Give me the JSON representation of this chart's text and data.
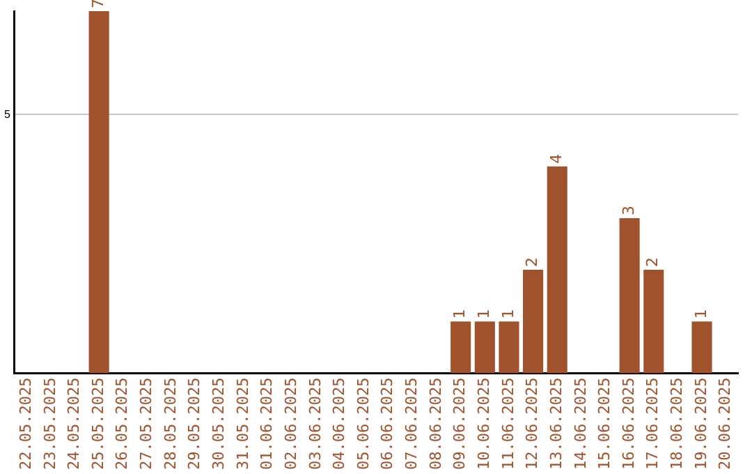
{
  "chart_data": {
    "type": "bar",
    "categories": [
      "22.05.2025",
      "23.05.2025",
      "24.05.2025",
      "25.05.2025",
      "26.05.2025",
      "27.05.2025",
      "28.05.2025",
      "29.05.2025",
      "30.05.2025",
      "31.05.2025",
      "01.06.2025",
      "02.06.2025",
      "03.06.2025",
      "04.06.2025",
      "05.06.2025",
      "06.06.2025",
      "07.06.2025",
      "08.06.2025",
      "09.06.2025",
      "10.06.2025",
      "11.06.2025",
      "12.06.2025",
      "13.06.2025",
      "14.06.2025",
      "15.06.2025",
      "16.06.2025",
      "17.06.2025",
      "18.06.2025",
      "19.06.2025",
      "20.06.2025"
    ],
    "values": [
      0,
      0,
      0,
      7,
      0,
      0,
      0,
      0,
      0,
      0,
      0,
      0,
      0,
      0,
      0,
      0,
      0,
      0,
      1,
      1,
      1,
      2,
      4,
      0,
      0,
      3,
      2,
      0,
      1,
      0
    ],
    "value_labels": [
      null,
      null,
      null,
      "7",
      null,
      null,
      null,
      null,
      null,
      null,
      null,
      null,
      null,
      null,
      null,
      null,
      null,
      null,
      "1",
      "1",
      "1",
      "2",
      "4",
      null,
      null,
      "3",
      "2",
      null,
      "1",
      null
    ],
    "color": "#a0522d",
    "ylim": [
      0,
      7
    ],
    "yticks": [
      5
    ],
    "grid": "y",
    "legend": false
  }
}
